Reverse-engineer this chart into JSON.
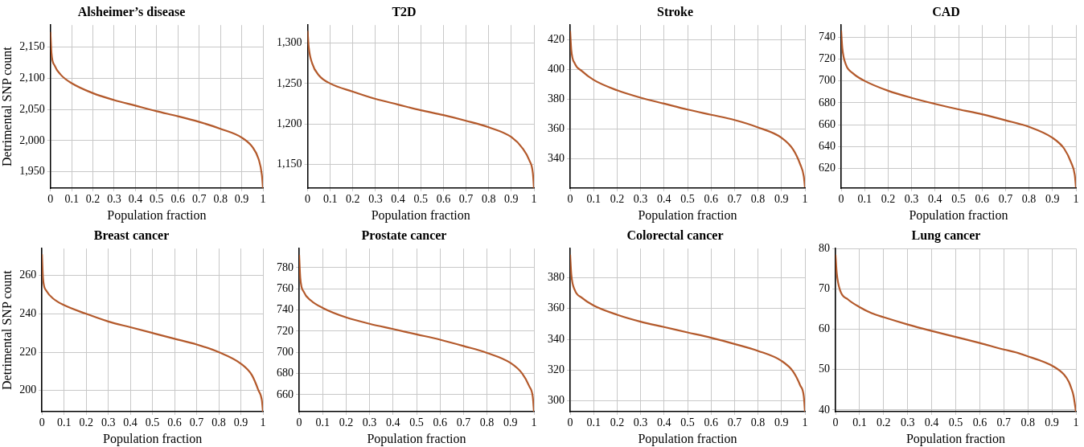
{
  "chart_data": [
    {
      "type": "line",
      "title": "Alsheimer’s disease",
      "xlabel": "Population fraction",
      "ylabel": "Detrimental SNP count",
      "x": [
        0,
        0.005,
        0.02,
        0.05,
        0.1,
        0.2,
        0.3,
        0.4,
        0.5,
        0.6,
        0.7,
        0.8,
        0.9,
        0.95,
        0.98,
        0.995,
        1
      ],
      "values": [
        2174,
        2140,
        2120,
        2105,
        2092,
        2076,
        2065,
        2056,
        2047,
        2039,
        2030,
        2019,
        2005,
        1990,
        1970,
        1945,
        1924
      ],
      "color": "#b3592b",
      "xlim": [
        0,
        1
      ],
      "xticks": [
        0,
        0.1,
        0.2,
        0.3,
        0.4,
        0.5,
        0.6,
        0.7,
        0.8,
        0.9,
        1
      ],
      "ylim": [
        1924,
        2185
      ],
      "yticks": [
        {
          "value": 1950,
          "label": "1,950"
        },
        {
          "value": 2000,
          "label": "2,000"
        },
        {
          "value": 2050,
          "label": "2,050"
        },
        {
          "value": 2100,
          "label": "2,100"
        },
        {
          "value": 2150,
          "label": "2,150"
        }
      ],
      "grid": true
    },
    {
      "type": "line",
      "title": "T2D",
      "xlabel": "Population fraction",
      "x": [
        0,
        0.005,
        0.02,
        0.05,
        0.1,
        0.2,
        0.3,
        0.4,
        0.5,
        0.6,
        0.7,
        0.8,
        0.9,
        0.95,
        0.98,
        0.995,
        1
      ],
      "values": [
        1315,
        1295,
        1275,
        1260,
        1250,
        1240,
        1231,
        1224,
        1217,
        1211,
        1204,
        1196,
        1184,
        1170,
        1155,
        1140,
        1121
      ],
      "color": "#b3592b",
      "xlim": [
        0,
        1
      ],
      "xticks": [
        0,
        0.1,
        0.2,
        0.3,
        0.4,
        0.5,
        0.6,
        0.7,
        0.8,
        0.9,
        1
      ],
      "ylim": [
        1121,
        1322
      ],
      "yticks": [
        {
          "value": 1150,
          "label": "1,150"
        },
        {
          "value": 1200,
          "label": "1,200"
        },
        {
          "value": 1250,
          "label": "1,250"
        },
        {
          "value": 1300,
          "label": "1,300"
        }
      ],
      "grid": true
    },
    {
      "type": "line",
      "title": "Stroke",
      "xlabel": "Population fraction",
      "x": [
        0,
        0.005,
        0.02,
        0.05,
        0.1,
        0.2,
        0.3,
        0.4,
        0.5,
        0.6,
        0.7,
        0.8,
        0.9,
        0.95,
        0.98,
        0.995,
        1
      ],
      "values": [
        426,
        413,
        404,
        399,
        393,
        386,
        381,
        377,
        373,
        369.5,
        366,
        361,
        354,
        346,
        336,
        328,
        320.5
      ],
      "color": "#b3592b",
      "xlim": [
        0,
        1
      ],
      "xticks": [
        0,
        0.1,
        0.2,
        0.3,
        0.4,
        0.5,
        0.6,
        0.7,
        0.8,
        0.9,
        1
      ],
      "ylim": [
        320,
        430
      ],
      "yticks": [
        340,
        360,
        380,
        400,
        420
      ],
      "grid": true
    },
    {
      "type": "line",
      "title": "CAD",
      "xlabel": "Population fraction",
      "x": [
        0,
        0.005,
        0.02,
        0.05,
        0.1,
        0.2,
        0.3,
        0.4,
        0.5,
        0.6,
        0.7,
        0.8,
        0.9,
        0.95,
        0.98,
        0.995,
        1
      ],
      "values": [
        746,
        730,
        715,
        707,
        700,
        691,
        684.5,
        679,
        674,
        669.5,
        664,
        658,
        648,
        638,
        625,
        614,
        602.5
      ],
      "color": "#b3592b",
      "xlim": [
        0,
        1
      ],
      "xticks": [
        0,
        0.1,
        0.2,
        0.3,
        0.4,
        0.5,
        0.6,
        0.7,
        0.8,
        0.9,
        1
      ],
      "ylim": [
        602,
        751
      ],
      "yticks": [
        620,
        640,
        660,
        680,
        700,
        720,
        740
      ],
      "grid": true
    },
    {
      "type": "line",
      "title": "Breast cancer",
      "xlabel": "Population fraction",
      "ylabel": "Detrimental SNP count",
      "x": [
        0,
        0.005,
        0.02,
        0.05,
        0.1,
        0.2,
        0.3,
        0.4,
        0.5,
        0.6,
        0.7,
        0.8,
        0.9,
        0.95,
        0.98,
        0.995,
        1
      ],
      "values": [
        271,
        258,
        252,
        248,
        244.5,
        240,
        236,
        233,
        230,
        227,
        224,
        220,
        214,
        208,
        200,
        195,
        189
      ],
      "color": "#b3592b",
      "xlim": [
        0,
        1
      ],
      "xticks": [
        0,
        0.1,
        0.2,
        0.3,
        0.4,
        0.5,
        0.6,
        0.7,
        0.8,
        0.9,
        1
      ],
      "ylim": [
        189,
        274
      ],
      "yticks": [
        200,
        220,
        240,
        260
      ],
      "grid": true
    },
    {
      "type": "line",
      "title": "Prostate cancer",
      "xlabel": "Population fraction",
      "x": [
        0,
        0.005,
        0.02,
        0.05,
        0.1,
        0.2,
        0.3,
        0.4,
        0.5,
        0.6,
        0.7,
        0.8,
        0.9,
        0.95,
        0.98,
        0.995,
        1
      ],
      "values": [
        792,
        770,
        757,
        749,
        742,
        733,
        727,
        722,
        717,
        712,
        706,
        699.5,
        690,
        680,
        668,
        658,
        644
      ],
      "color": "#b3592b",
      "xlim": [
        0,
        1
      ],
      "xticks": [
        0,
        0.1,
        0.2,
        0.3,
        0.4,
        0.5,
        0.6,
        0.7,
        0.8,
        0.9,
        1
      ],
      "ylim": [
        644,
        798
      ],
      "yticks": [
        660,
        680,
        700,
        720,
        740,
        760,
        780
      ],
      "grid": true
    },
    {
      "type": "line",
      "title": "Colorectal cancer",
      "xlabel": "Population fraction",
      "x": [
        0,
        0.005,
        0.02,
        0.05,
        0.1,
        0.2,
        0.3,
        0.4,
        0.5,
        0.6,
        0.7,
        0.8,
        0.9,
        0.95,
        0.98,
        0.995,
        1
      ],
      "values": [
        395,
        382,
        372,
        367,
        362,
        356,
        351.5,
        348,
        344.5,
        341,
        337,
        332.5,
        326,
        319,
        310,
        303,
        293
      ],
      "color": "#b3592b",
      "xlim": [
        0,
        1
      ],
      "xticks": [
        0,
        0.1,
        0.2,
        0.3,
        0.4,
        0.5,
        0.6,
        0.7,
        0.8,
        0.9,
        1
      ],
      "ylim": [
        293,
        399
      ],
      "yticks": [
        300,
        320,
        340,
        360,
        380
      ],
      "grid": true
    },
    {
      "type": "line",
      "title": "Lung cancer",
      "xlabel": "Population fraction",
      "x": [
        0,
        0.005,
        0.02,
        0.05,
        0.1,
        0.15,
        0.2,
        0.3,
        0.4,
        0.5,
        0.6,
        0.7,
        0.75,
        0.8,
        0.85,
        0.9,
        0.95,
        0.97,
        0.98,
        0.99,
        1
      ],
      "values": [
        78.5,
        74,
        69.5,
        67.5,
        65.5,
        64,
        63,
        61.2,
        59.6,
        58.1,
        56.6,
        55,
        54.3,
        53.3,
        52.3,
        51,
        48.8,
        47,
        45.5,
        43.5,
        39.6
      ],
      "color": "#b3592b",
      "xlim": [
        0,
        1
      ],
      "xticks": [
        0,
        0.1,
        0.2,
        0.3,
        0.4,
        0.5,
        0.6,
        0.7,
        0.8,
        0.9,
        1
      ],
      "ylim": [
        39.6,
        80
      ],
      "yticks": [
        40,
        50,
        60,
        70,
        80
      ],
      "grid": true
    }
  ]
}
